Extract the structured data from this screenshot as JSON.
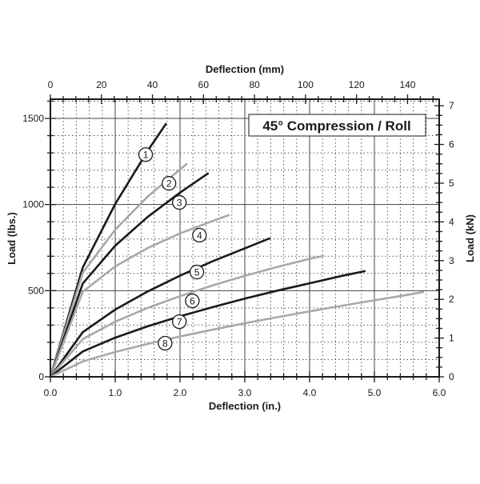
{
  "chart_data": {
    "type": "line",
    "title": "45° Compression / Roll",
    "xlabel": "Deflection (in.)",
    "ylabel": "Load (lbs.)",
    "x2label": "Deflection (mm)",
    "y2label": "Load (kN)",
    "xlim": [
      0,
      6
    ],
    "ylim": [
      0,
      1600
    ],
    "x2lim_mm": [
      0,
      152.4
    ],
    "y2lim_kN": [
      0,
      7.117
    ],
    "xticks": [
      "0.0",
      "1.0",
      "2.0",
      "3.0",
      "4.0",
      "5.0",
      "6.0"
    ],
    "yticks": [
      "0",
      "500",
      "1000",
      "1500"
    ],
    "x2ticks": [
      "0",
      "20",
      "40",
      "60",
      "80",
      "100",
      "120",
      "140"
    ],
    "y2ticks": [
      "0",
      "1",
      "2",
      "3",
      "4",
      "5",
      "6",
      "7"
    ],
    "grid": true,
    "legend": "none",
    "colors": {
      "dark": "#1a1a1a",
      "light": "#a8a8a8"
    },
    "series": [
      {
        "name": "1",
        "color": "#1a1a1a",
        "label_at": [
          1.47,
          1290
        ],
        "x": [
          0,
          0.5,
          1,
          1.5,
          1.78
        ],
        "y": [
          0,
          635,
          1003,
          1311,
          1467
        ]
      },
      {
        "name": "2",
        "color": "#a8a8a8",
        "label_at": [
          1.83,
          1123
        ],
        "x": [
          0,
          0.5,
          1,
          1.5,
          2.1
        ],
        "y": [
          0,
          604,
          854,
          1046,
          1235
        ]
      },
      {
        "name": "3",
        "color": "#1a1a1a",
        "label_at": [
          1.99,
          1012
        ],
        "x": [
          0,
          0.5,
          1,
          1.5,
          2,
          2.43
        ],
        "y": [
          0,
          542,
          761,
          928,
          1069,
          1180
        ]
      },
      {
        "name": "4",
        "color": "#a8a8a8",
        "label_at": [
          2.3,
          822
        ],
        "x": [
          0,
          0.5,
          1,
          1.5,
          2,
          2.5,
          2.75
        ],
        "y": [
          0,
          494,
          641,
          747,
          832,
          904,
          938
        ]
      },
      {
        "name": "5",
        "color": "#1a1a1a",
        "label_at": [
          2.26,
          608
        ],
        "x": [
          0,
          0.5,
          1,
          1.5,
          2,
          2.5,
          3,
          3.38
        ],
        "y": [
          0,
          259,
          390,
          495,
          587,
          670,
          746,
          803
        ]
      },
      {
        "name": "6",
        "color": "#a8a8a8",
        "label_at": [
          2.19,
          441
        ],
        "x": [
          0,
          0.5,
          1,
          1.5,
          2,
          2.5,
          3,
          3.5,
          4,
          4.2
        ],
        "y": [
          0,
          219,
          320,
          400,
          468,
          530,
          586,
          637,
          685,
          701
        ]
      },
      {
        "name": "7",
        "color": "#1a1a1a",
        "label_at": [
          1.99,
          320
        ],
        "x": [
          0,
          0.5,
          1,
          1.5,
          2,
          2.5,
          3,
          3.5,
          4,
          4.5,
          4.85
        ],
        "y": [
          0,
          147,
          227,
          293,
          351,
          404,
          454,
          500,
          543,
          586,
          613
        ]
      },
      {
        "name": "8",
        "color": "#a8a8a8",
        "label_at": [
          1.77,
          195
        ],
        "x": [
          0,
          0.5,
          1,
          1.5,
          2,
          2.5,
          3,
          3.5,
          4,
          4.5,
          5,
          5.5,
          5.75
        ],
        "y": [
          0,
          89,
          144,
          191,
          234,
          273,
          311,
          346,
          380,
          413,
          444,
          475,
          492
        ]
      }
    ]
  }
}
